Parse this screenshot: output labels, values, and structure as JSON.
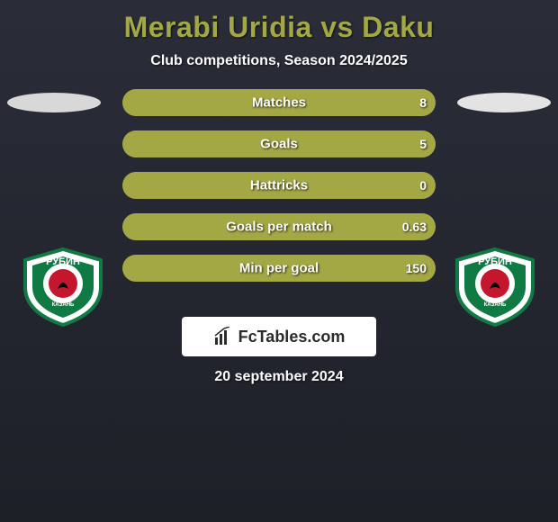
{
  "title": "Merabi Uridia vs Daku",
  "subtitle": "Club competitions, Season 2024/2025",
  "date": "20 september 2024",
  "brand": "FcTables.com",
  "colors": {
    "title": "#a3a845",
    "bar_fill": "#a3a845",
    "bar_track": "#3a3d47",
    "background_top": "#2a2d38",
    "background_bottom": "#1e2028",
    "logo_box": "#ffffff"
  },
  "ovals": {
    "left": "#d8d8d8",
    "right": "#e3e3e3"
  },
  "crest": {
    "name": "РУБИН",
    "ring_outer": "#0f7a43",
    "ring_inner": "#ffffff",
    "center": "#c4162d",
    "text": "КАЗАНЬ"
  },
  "bars": [
    {
      "label": "Matches",
      "left": "",
      "right": "8",
      "left_pct": 6,
      "right_pct": 94
    },
    {
      "label": "Goals",
      "left": "",
      "right": "5",
      "left_pct": 6,
      "right_pct": 94
    },
    {
      "label": "Hattricks",
      "left": "",
      "right": "0",
      "left_pct": 6,
      "right_pct": 94
    },
    {
      "label": "Goals per match",
      "left": "",
      "right": "0.63",
      "left_pct": 6,
      "right_pct": 94
    },
    {
      "label": "Min per goal",
      "left": "",
      "right": "150",
      "left_pct": 6,
      "right_pct": 94
    }
  ]
}
